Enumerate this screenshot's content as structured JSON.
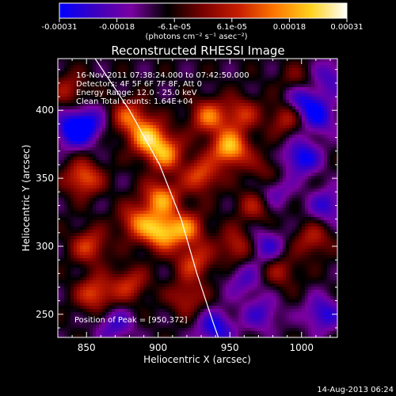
{
  "colorbar": {
    "tick_labels": [
      "-0.00031",
      "-0.00018",
      "-6.1e-05",
      "6.1e-05",
      "0.00018",
      "0.00031"
    ],
    "unit_label": "(photons cm⁻² s⁻¹ asec⁻²)",
    "colors": [
      "#0000ff",
      "#3c00c0",
      "#7a00a0",
      "#000000",
      "#7a0000",
      "#c81e00",
      "#ff7800",
      "#ffd21e",
      "#ffffff"
    ]
  },
  "chart_data": {
    "type": "heatmap",
    "title": "Reconstructed RHESSI Image",
    "xlabel": "Heliocentric X (arcsec)",
    "ylabel": "Heliocentric Y (arcsec)",
    "xlim": [
      830,
      1025
    ],
    "ylim": [
      233,
      438
    ],
    "x_ticks": [
      850,
      900,
      950,
      1000
    ],
    "y_ticks": [
      250,
      300,
      350,
      400
    ],
    "x_tick_labels": [
      "850",
      "900",
      "950",
      "1000"
    ],
    "y_tick_labels": [
      "250",
      "300",
      "350",
      "400"
    ],
    "vmin": -0.00031,
    "vmax": 0.00031,
    "annotations": [
      "16-Nov-2011 07:38:24.000 to 07:42:50.000",
      "Detectors: 4F 5F 6F 7F 8F, Att 0",
      "Energy Range: 12.0 - 25.0 keV",
      "Clean     Total counts: 1.64E+04"
    ],
    "peak_label": "Position of Peak = [950,372]",
    "limb_points": [
      [
        856,
        438
      ],
      [
        880,
        400
      ],
      [
        901,
        360
      ],
      [
        916,
        320
      ],
      [
        927,
        280
      ],
      [
        938,
        245
      ],
      [
        942,
        233
      ]
    ],
    "blobs": [
      {
        "x": 893,
        "y": 380,
        "v": 0.00028
      },
      {
        "x": 905,
        "y": 368,
        "v": 0.00024
      },
      {
        "x": 880,
        "y": 395,
        "v": 0.0002
      },
      {
        "x": 950,
        "y": 372,
        "v": 0.00031
      },
      {
        "x": 935,
        "y": 395,
        "v": 0.00022
      },
      {
        "x": 958,
        "y": 397,
        "v": 0.00016
      },
      {
        "x": 930,
        "y": 352,
        "v": 0.0002
      },
      {
        "x": 902,
        "y": 335,
        "v": 0.00026
      },
      {
        "x": 902,
        "y": 310,
        "v": 0.00029
      },
      {
        "x": 885,
        "y": 318,
        "v": 0.0002
      },
      {
        "x": 920,
        "y": 313,
        "v": 0.00022
      },
      {
        "x": 848,
        "y": 350,
        "v": 0.00022
      },
      {
        "x": 852,
        "y": 300,
        "v": 0.00018
      },
      {
        "x": 856,
        "y": 265,
        "v": 0.0002
      },
      {
        "x": 880,
        "y": 272,
        "v": 0.00016
      },
      {
        "x": 925,
        "y": 288,
        "v": 0.00018
      },
      {
        "x": 955,
        "y": 300,
        "v": 0.00016
      },
      {
        "x": 968,
        "y": 330,
        "v": 0.00014
      },
      {
        "x": 920,
        "y": 262,
        "v": 0.00014
      },
      {
        "x": 1008,
        "y": 305,
        "v": 0.00014
      },
      {
        "x": 985,
        "y": 282,
        "v": 0.00012
      },
      {
        "x": 990,
        "y": 395,
        "v": 0.00016
      },
      {
        "x": 998,
        "y": 420,
        "v": 0.00012
      },
      {
        "x": 838,
        "y": 415,
        "v": 0.00012
      },
      {
        "x": 975,
        "y": 355,
        "v": 0.0001
      },
      {
        "x": 1000,
        "y": 365,
        "v": -0.00022
      },
      {
        "x": 1000,
        "y": 408,
        "v": -0.00022
      },
      {
        "x": 1012,
        "y": 395,
        "v": -0.00018
      },
      {
        "x": 850,
        "y": 390,
        "v": -0.00018
      },
      {
        "x": 840,
        "y": 385,
        "v": -0.0002
      },
      {
        "x": 975,
        "y": 300,
        "v": -0.00016
      },
      {
        "x": 1015,
        "y": 250,
        "v": -0.00018
      },
      {
        "x": 972,
        "y": 250,
        "v": -0.00014
      },
      {
        "x": 980,
        "y": 340,
        "v": -0.00014
      },
      {
        "x": 870,
        "y": 242,
        "v": -0.00014
      },
      {
        "x": 940,
        "y": 240,
        "v": -0.0002
      },
      {
        "x": 1018,
        "y": 330,
        "v": -0.00016
      },
      {
        "x": 1020,
        "y": 425,
        "v": -0.00014
      },
      {
        "x": 960,
        "y": 275,
        "v": -0.00012
      }
    ]
  },
  "footer": {
    "timestamp": "14-Aug-2013 06:24"
  }
}
